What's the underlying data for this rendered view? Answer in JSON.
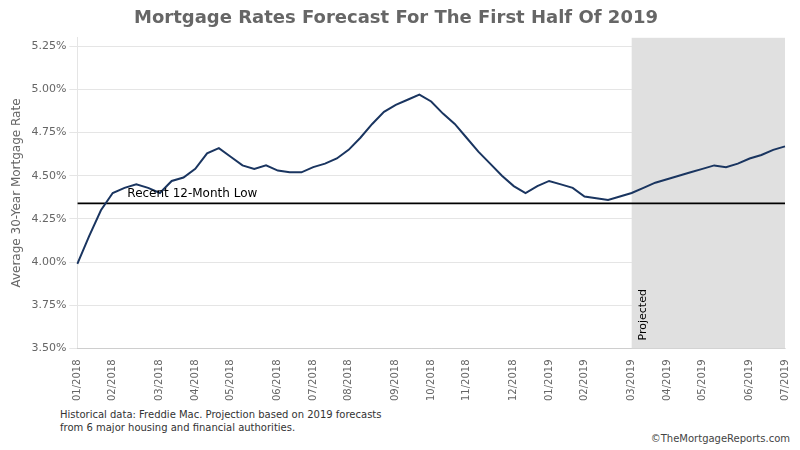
{
  "chart_data": {
    "type": "line",
    "title": "Mortgage Rates Forecast For The First Half Of 2019",
    "ylabel": "Average 30-Year Mortgage Rate",
    "categories": [
      "01/2018",
      null,
      null,
      "02/2018",
      null,
      null,
      null,
      "03/2018",
      null,
      null,
      "04/2018",
      null,
      null,
      "05/2018",
      null,
      null,
      null,
      "06/2018",
      null,
      null,
      "07/2018",
      null,
      null,
      "08/2018",
      null,
      null,
      null,
      "09/2018",
      null,
      null,
      "10/2018",
      null,
      null,
      "11/2018",
      null,
      null,
      null,
      "12/2018",
      null,
      null,
      "01/2019",
      null,
      null,
      "02/2019",
      null,
      null,
      null,
      "03/2019",
      null,
      null,
      "04/2019",
      null,
      null,
      "05/2019",
      null,
      null,
      null,
      "06/2019",
      null,
      null,
      "07/2019"
    ],
    "values": [
      3.99,
      4.15,
      4.3,
      4.4,
      4.43,
      4.45,
      4.43,
      4.4,
      4.47,
      4.49,
      4.54,
      4.63,
      4.66,
      4.61,
      4.56,
      4.54,
      4.56,
      4.53,
      4.52,
      4.52,
      4.55,
      4.57,
      4.6,
      4.65,
      4.72,
      4.8,
      4.87,
      4.91,
      4.94,
      4.97,
      4.93,
      4.86,
      4.8,
      4.72,
      4.64,
      4.57,
      4.5,
      4.44,
      4.4,
      4.44,
      4.47,
      4.45,
      4.43,
      4.38,
      4.37,
      4.36,
      4.38,
      4.4,
      4.43,
      4.46,
      4.48,
      4.5,
      4.52,
      4.54,
      4.56,
      4.55,
      4.57,
      4.6,
      4.62,
      4.65,
      4.67
    ],
    "color": "#1a3560",
    "ylim": [
      3.5,
      5.3
    ],
    "yticks": [
      {
        "value": 3.5,
        "label": "3.50%"
      },
      {
        "value": 3.75,
        "label": "3.75%"
      },
      {
        "value": 4.0,
        "label": "4.00%"
      },
      {
        "value": 4.25,
        "label": "4.25%"
      },
      {
        "value": 4.5,
        "label": "4.50%"
      },
      {
        "value": 4.75,
        "label": "4.75%"
      },
      {
        "value": 5.0,
        "label": "5.00%"
      },
      {
        "value": 5.25,
        "label": "5.25%"
      }
    ],
    "grid": true,
    "reference_line": {
      "value": 4.34,
      "label": "Recent 12-Month Low"
    },
    "projected_region": {
      "start": "03/2019",
      "label": "Projected",
      "color": "#e0e0e0"
    },
    "footnotes": [
      "Historical data: Freddie Mac. Projection based on 2019 forecasts\nfrom 6 major housing and financial authorities.",
      "©TheMortgageReports.com"
    ]
  }
}
